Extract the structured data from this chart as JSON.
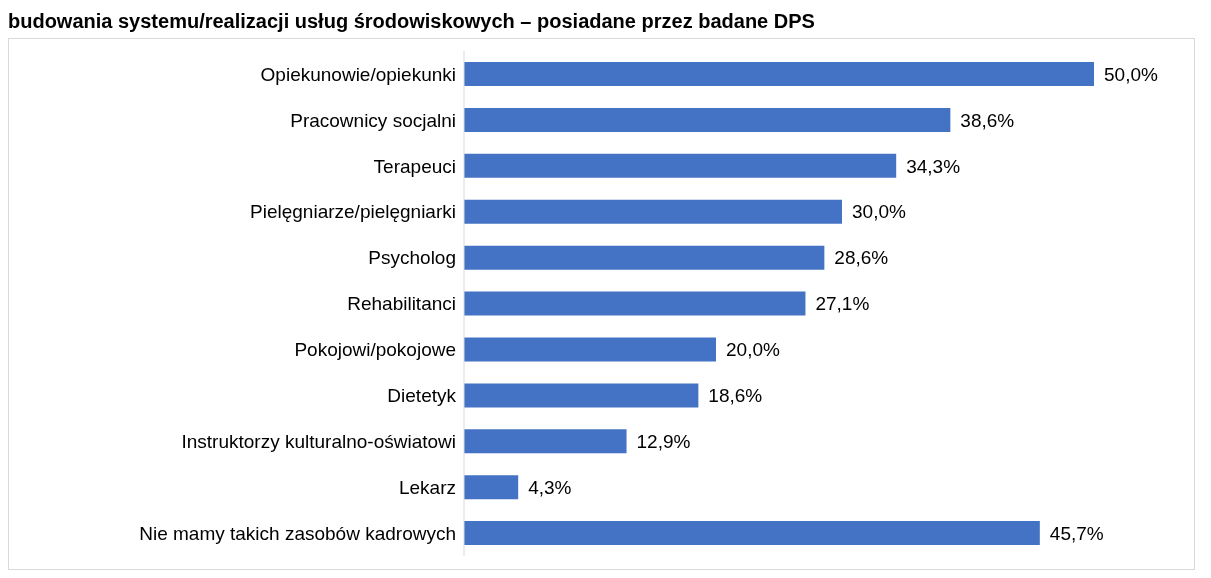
{
  "chart_data": {
    "type": "bar",
    "orientation": "horizontal",
    "title": "budowania systemu/realizacji usług środowiskowych – posiadane przez badane DPS",
    "categories": [
      "Opiekunowie/opiekunki",
      "Pracownicy socjalni",
      "Terapeuci",
      "Pielęgniarze/pielęgniarki",
      "Psycholog",
      "Rehabilitanci",
      "Pokojowi/pokojowe",
      "Dietetyk",
      "Instruktorzy kulturalno-oświatowi",
      "Lekarz",
      "Nie mamy takich zasobów kadrowych"
    ],
    "values": [
      50.0,
      38.6,
      34.3,
      30.0,
      28.6,
      27.1,
      20.0,
      18.6,
      12.9,
      4.3,
      45.7
    ],
    "value_labels": [
      "50,0%",
      "38,6%",
      "34,3%",
      "30,0%",
      "28,6%",
      "27,1%",
      "20,0%",
      "18,6%",
      "12,9%",
      "4,3%",
      "45,7%"
    ],
    "color": "#4472c4",
    "grid": false,
    "legend": false
  }
}
